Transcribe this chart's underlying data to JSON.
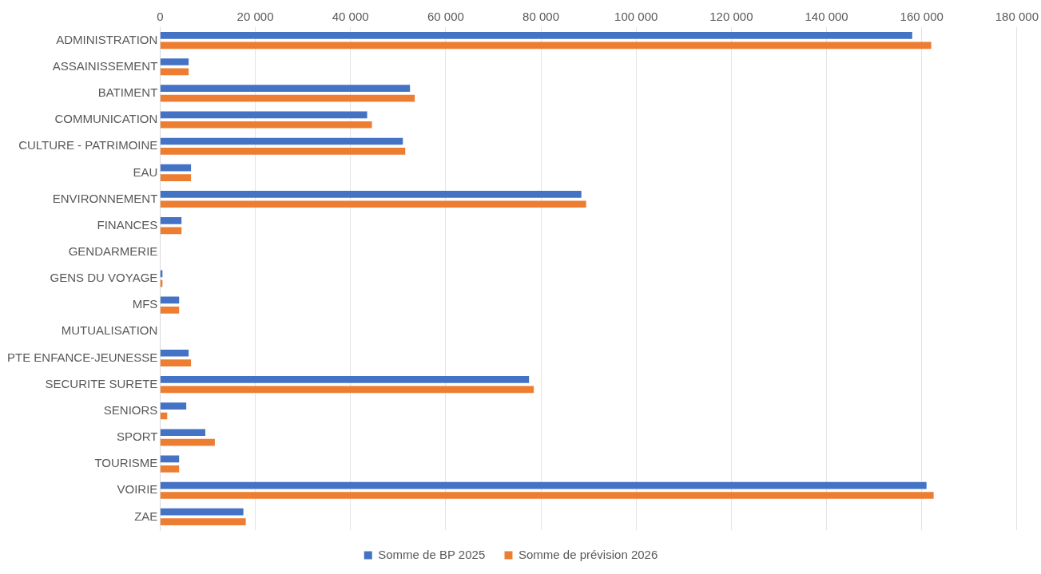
{
  "chart_data": {
    "type": "bar",
    "orientation": "horizontal",
    "categories": [
      "ADMINISTRATION",
      "ASSAINISSEMENT",
      "BATIMENT",
      "COMMUNICATION",
      "CULTURE - PATRIMOINE",
      "EAU",
      "ENVIRONNEMENT",
      "FINANCES",
      "GENDARMERIE",
      "GENS DU VOYAGE",
      "MFS",
      "MUTUALISATION",
      "PTE ENFANCE-JEUNESSE",
      "SECURITE SURETE",
      "SENIORS",
      "SPORT",
      "TOURISME",
      "VOIRIE",
      "ZAE"
    ],
    "series": [
      {
        "name": "Somme de BP 2025",
        "color": "#4472c4",
        "values": [
          158000,
          6000,
          52500,
          43500,
          51000,
          6500,
          88500,
          4500,
          0,
          500,
          4000,
          0,
          6000,
          77500,
          5500,
          9500,
          4000,
          161000,
          17500
        ]
      },
      {
        "name": "Somme de prévision 2026",
        "color": "#ed7d31",
        "values": [
          162000,
          6000,
          53500,
          44500,
          51500,
          6500,
          89500,
          4500,
          0,
          500,
          4000,
          0,
          6500,
          78500,
          1500,
          11500,
          4000,
          162500,
          18000
        ]
      }
    ],
    "xlim": [
      0,
      180000
    ],
    "xticks": [
      0,
      {
        "value": 20000,
        "label": "20 000"
      },
      {
        "value": 40000,
        "label": "40 000"
      },
      {
        "value": 60000,
        "label": "60 000"
      },
      {
        "value": 80000,
        "label": "80 000"
      },
      {
        "value": 100000,
        "label": "100 000"
      },
      {
        "value": 120000,
        "label": "120 000"
      },
      {
        "value": 140000,
        "label": "140 000"
      },
      {
        "value": 160000,
        "label": "160 000"
      },
      {
        "value": 180000,
        "label": "180 000"
      }
    ],
    "grid": "x",
    "legend": "bottom"
  }
}
